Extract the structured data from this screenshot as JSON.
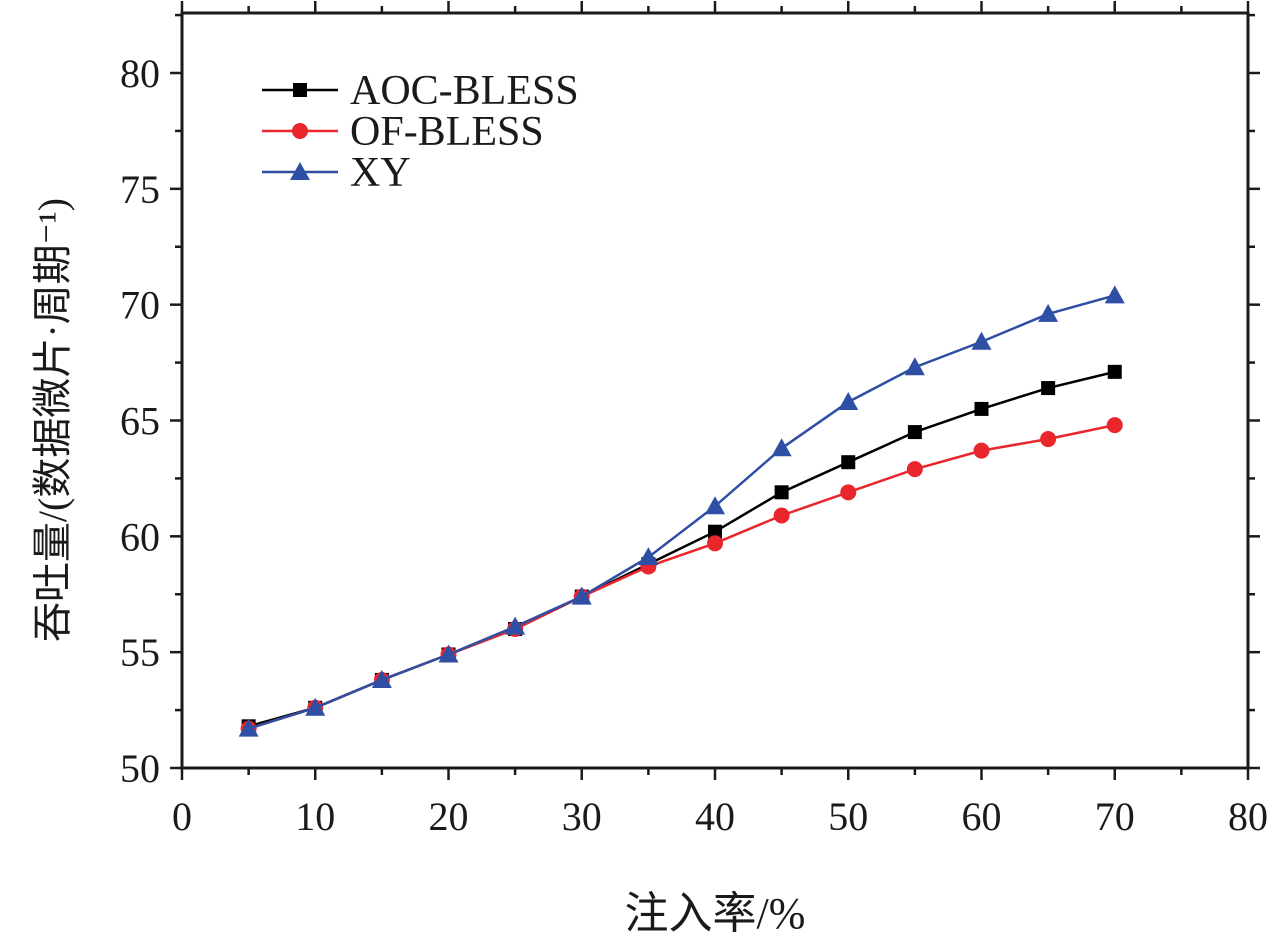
{
  "chart_data": {
    "type": "line",
    "title": "",
    "xlabel": "注入率/%",
    "ylabel": "吞吐量/(数据微片·周期⁻¹)",
    "xlim": [
      0,
      80
    ],
    "ylim": [
      50,
      80
    ],
    "xticks": [
      0,
      10,
      20,
      30,
      40,
      50,
      60,
      70,
      80
    ],
    "yticks": [
      50,
      55,
      60,
      65,
      70,
      75,
      80
    ],
    "grid": false,
    "legend_position": "top-left",
    "x": [
      5,
      10,
      15,
      20,
      25,
      30,
      35,
      40,
      45,
      50,
      55,
      60,
      65,
      70
    ],
    "series": [
      {
        "name": "AOC-BLESS",
        "color": "#000000",
        "marker": "square",
        "values": [
          51.8,
          52.6,
          53.8,
          54.9,
          56.0,
          57.4,
          58.8,
          60.2,
          61.9,
          63.2,
          64.5,
          65.5,
          66.4,
          67.1
        ]
      },
      {
        "name": "OF-BLESS",
        "color": "#e8262b",
        "marker": "circle",
        "values": [
          51.7,
          52.6,
          53.8,
          54.9,
          56.0,
          57.4,
          58.7,
          59.7,
          60.9,
          61.9,
          62.9,
          63.7,
          64.2,
          64.8
        ]
      },
      {
        "name": "XY",
        "color": "#2e4fa3",
        "marker": "triangle",
        "values": [
          51.7,
          52.6,
          53.8,
          54.9,
          56.1,
          57.4,
          59.1,
          61.3,
          63.8,
          65.8,
          67.3,
          68.4,
          69.6,
          70.4
        ]
      }
    ]
  }
}
